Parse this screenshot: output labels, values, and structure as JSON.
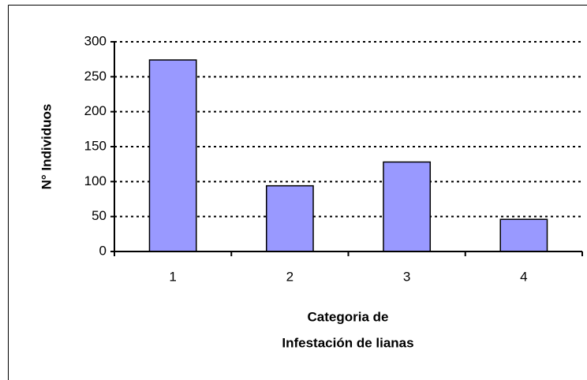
{
  "chart_data": {
    "type": "bar",
    "categories": [
      "1",
      "2",
      "3",
      "4"
    ],
    "values": [
      274,
      94,
      128,
      46
    ],
    "color": "#9999ff",
    "ylim": [
      0,
      300
    ],
    "yticks": [
      0,
      50,
      100,
      150,
      200,
      250,
      300
    ],
    "ylabel": "N° Individuos",
    "xlabel": [
      "Categoria de",
      "Infestación de lianas"
    ],
    "grid": true
  }
}
